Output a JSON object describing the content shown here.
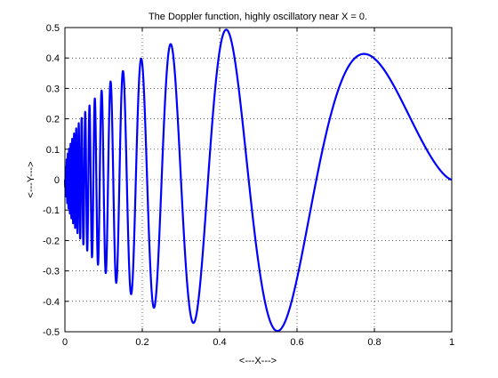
{
  "chart_data": {
    "type": "line",
    "title": "The Doppler function, highly oscillatory near X = 0.",
    "xlabel": "<---X--->",
    "ylabel": "<---Y--->",
    "xlim": [
      0,
      1
    ],
    "ylim": [
      -0.5,
      0.5
    ],
    "xticks": [
      0,
      0.2,
      0.4,
      0.6,
      0.8,
      1
    ],
    "xtick_labels": [
      "0",
      "0.2",
      "0.4",
      "0.6",
      "0.8",
      "1"
    ],
    "yticks": [
      -0.5,
      -0.4,
      -0.3,
      -0.2,
      -0.1,
      0,
      0.1,
      0.2,
      0.3,
      0.4,
      0.5
    ],
    "ytick_labels": [
      "-0.5",
      "-0.4",
      "-0.3",
      "-0.2",
      "-0.1",
      "0",
      "0.1",
      "0.2",
      "0.3",
      "0.4",
      "0.5"
    ],
    "grid": true,
    "grid_style": "dotted",
    "series": [
      {
        "function": "y = sqrt(x*(1-x)) * sin(2.1*pi/(x+0.05))",
        "color": "#0000ff",
        "x_range": [
          0,
          1
        ],
        "samples": 4000
      }
    ]
  }
}
